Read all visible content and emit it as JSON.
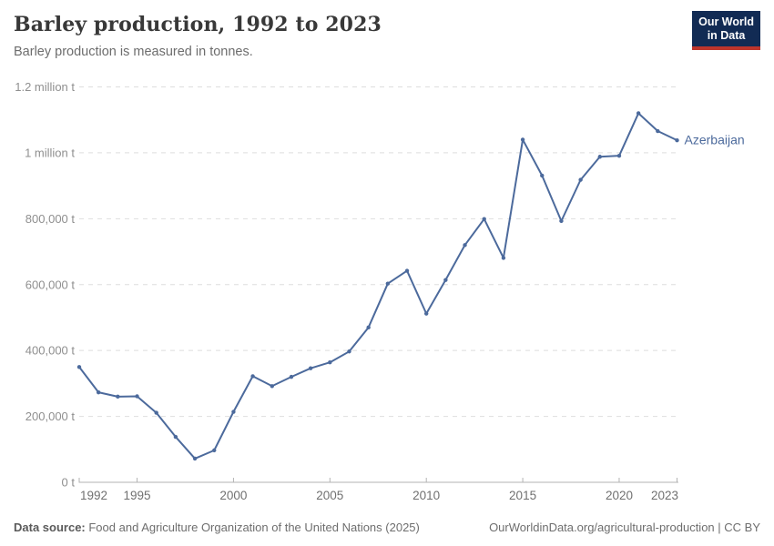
{
  "header": {
    "title": "Barley production, 1992 to 2023",
    "subtitle": "Barley production is measured in tonnes.",
    "logo": {
      "line1": "Our World",
      "line2": "in Data"
    }
  },
  "chart_data": {
    "type": "line",
    "title": "Barley production, 1992 to 2023",
    "subtitle": "Barley production is measured in tonnes.",
    "xlabel": "",
    "ylabel": "tonnes",
    "xlim": [
      1992,
      2023
    ],
    "ylim": [
      0,
      1200000
    ],
    "grid": "horizontal-dashed",
    "legend_position": "end-of-line-label",
    "x_ticks": [
      1992,
      1995,
      2000,
      2005,
      2010,
      2015,
      2020,
      2023
    ],
    "y_ticks": [
      {
        "value": 0,
        "label": "0 t"
      },
      {
        "value": 200000,
        "label": "200,000 t"
      },
      {
        "value": 400000,
        "label": "400,000 t"
      },
      {
        "value": 600000,
        "label": "600,000 t"
      },
      {
        "value": 800000,
        "label": "800,000 t"
      },
      {
        "value": 1000000,
        "label": "1 million t"
      },
      {
        "value": 1200000,
        "label": "1.2 million t"
      }
    ],
    "x": [
      1992,
      1993,
      1994,
      1995,
      1996,
      1997,
      1998,
      1999,
      2000,
      2001,
      2002,
      2003,
      2004,
      2005,
      2006,
      2007,
      2008,
      2009,
      2010,
      2011,
      2012,
      2013,
      2014,
      2015,
      2016,
      2017,
      2018,
      2019,
      2020,
      2021,
      2022,
      2023
    ],
    "series": [
      {
        "name": "Azerbaijan",
        "color": "#4C6A9C",
        "values": [
          350000,
          273000,
          260000,
          261000,
          211000,
          138000,
          72000,
          97000,
          214000,
          322000,
          292000,
          320000,
          346000,
          364000,
          397000,
          470000,
          603000,
          642000,
          512000,
          614000,
          720000,
          799000,
          681000,
          1040000,
          931000,
          793000,
          918000,
          988000,
          991000,
          1120000,
          1066000,
          1038000
        ]
      }
    ]
  },
  "footer": {
    "datasource_label": "Data source:",
    "datasource_text": " Food and Agriculture Organization of the United Nations (2025)",
    "link_text": "OurWorldinData.org/agricultural-production | CC BY"
  },
  "colors": {
    "line": "#4C6A9C",
    "entity_label": "#4C6A9C",
    "grid": "#dedede",
    "axis": "#b3b3b3",
    "y_tick_text": "#8f8f8f",
    "x_tick_text": "#707070",
    "logo_bg": "#122b54",
    "logo_stripe": "#be352c"
  }
}
